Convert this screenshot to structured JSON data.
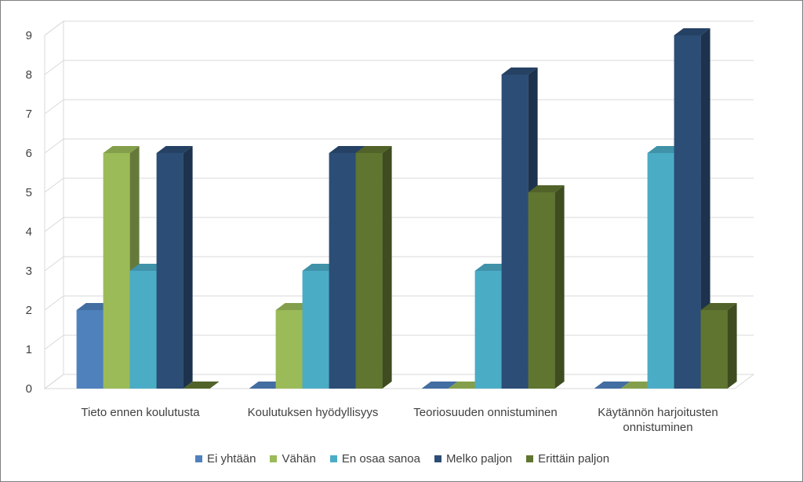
{
  "chart_data": {
    "type": "bar",
    "title": "",
    "xlabel": "",
    "ylabel": "",
    "ylim": [
      0,
      9
    ],
    "yticks": [
      "0",
      "1",
      "2",
      "3",
      "4",
      "5",
      "6",
      "7",
      "8",
      "9"
    ],
    "grid": true,
    "three_d": true,
    "legend_position": "bottom",
    "categories": [
      [
        "Tieto ennen koulutusta"
      ],
      [
        "Koulutuksen hyödyllisyys"
      ],
      [
        "Teoriosuuden onnistuminen"
      ],
      [
        "Käytännön harjoitusten",
        "onnistuminen"
      ]
    ],
    "series": [
      {
        "name": "Ei yhtään",
        "color": "#4f81bd",
        "values": [
          2,
          0,
          0,
          0
        ]
      },
      {
        "name": "Vähän",
        "color": "#9bbb59",
        "values": [
          6,
          2,
          0,
          0
        ]
      },
      {
        "name": "En osaa sanoa",
        "color": "#4bacc6",
        "values": [
          3,
          3,
          3,
          6
        ]
      },
      {
        "name": "Melko paljon",
        "color": "#2c4d75",
        "values": [
          6,
          6,
          8,
          9
        ]
      },
      {
        "name": "Erittäin paljon",
        "color": "#5f7530",
        "values": [
          0,
          6,
          5,
          2
        ]
      }
    ]
  }
}
